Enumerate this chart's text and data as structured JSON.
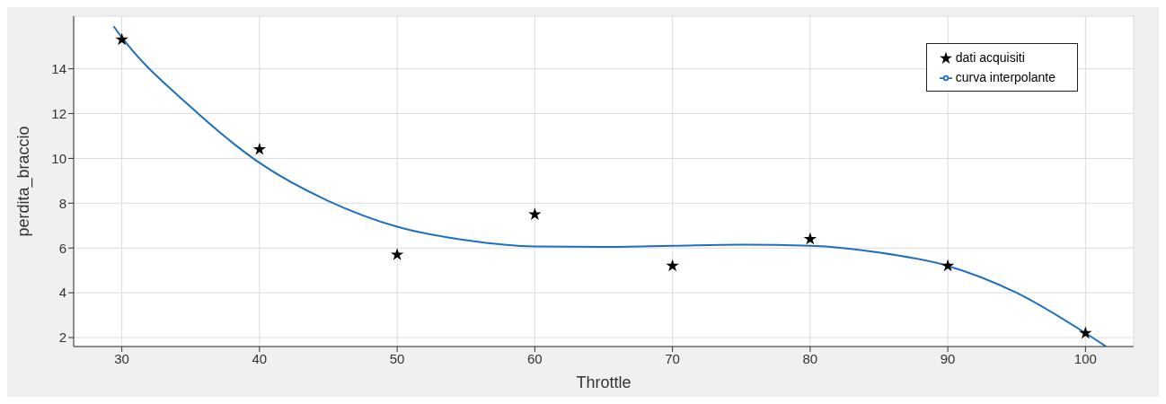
{
  "chart_data": {
    "type": "scatter",
    "xlabel": "Throttle",
    "ylabel": "perdita_braccio",
    "xlim": [
      26.5,
      103.5
    ],
    "ylim": [
      1.6,
      16.35
    ],
    "xticks": [
      30,
      40,
      50,
      60,
      70,
      80,
      90,
      100
    ],
    "yticks": [
      2,
      4,
      6,
      8,
      10,
      12,
      14
    ],
    "grid": true,
    "legend": "top right",
    "series": [
      {
        "name": "dati acquisiti",
        "marker": "star",
        "color": "#000000",
        "x": [
          30,
          40,
          50,
          60,
          70,
          80,
          90,
          100
        ],
        "values": [
          15.3,
          10.4,
          5.7,
          7.5,
          5.2,
          6.4,
          5.2,
          2.2
        ]
      },
      {
        "name": "curva interpolante",
        "type": "line",
        "color": "#1f6fbf",
        "x": [
          29.4,
          30,
          35,
          40,
          45,
          50,
          55,
          60,
          65,
          70,
          75,
          80,
          85,
          90,
          95,
          100,
          101.5
        ],
        "values": [
          15.9,
          15.4,
          12.3,
          9.8,
          8.1,
          6.95,
          6.35,
          6.07,
          6.05,
          6.1,
          6.15,
          6.1,
          5.8,
          5.2,
          4.0,
          2.2,
          1.6
        ]
      }
    ]
  }
}
